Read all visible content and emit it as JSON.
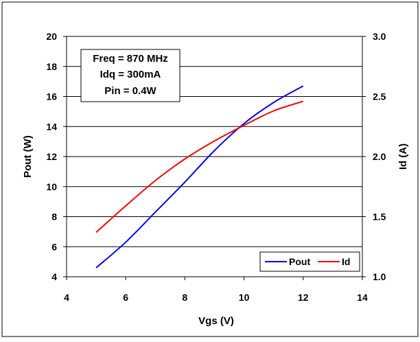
{
  "chart_data": {
    "type": "line",
    "x": [
      5,
      6,
      7,
      8,
      9,
      10,
      11,
      12
    ],
    "x_axis": {
      "label": "Vgs (V)",
      "range": [
        4,
        14
      ],
      "ticks": [
        4,
        6,
        8,
        10,
        12,
        14
      ]
    },
    "y_axis_left": {
      "label": "Pout (W)",
      "range": [
        4,
        20
      ],
      "ticks": [
        4,
        6,
        8,
        10,
        12,
        14,
        16,
        18,
        20
      ]
    },
    "y_axis_right": {
      "label": "Id (A)",
      "range": [
        1.0,
        3.0
      ],
      "ticks": [
        "1.0",
        "1.5",
        "2.0",
        "2.5",
        "3.0"
      ]
    },
    "grid": "horizontal",
    "series": [
      {
        "name": "Pout",
        "axis": "left",
        "color": "#0000ff",
        "values": [
          4.6,
          6.3,
          8.3,
          10.3,
          12.4,
          14.2,
          15.6,
          16.7
        ]
      },
      {
        "name": "Id",
        "axis": "right",
        "color": "#ff0000",
        "values": [
          1.37,
          1.59,
          1.8,
          1.98,
          2.13,
          2.26,
          2.38,
          2.46
        ]
      }
    ],
    "annotation": [
      "Freq = 870 MHz",
      "Idq = 300mA",
      "Pin = 0.4W"
    ],
    "legend_placement": "bottom-right"
  }
}
